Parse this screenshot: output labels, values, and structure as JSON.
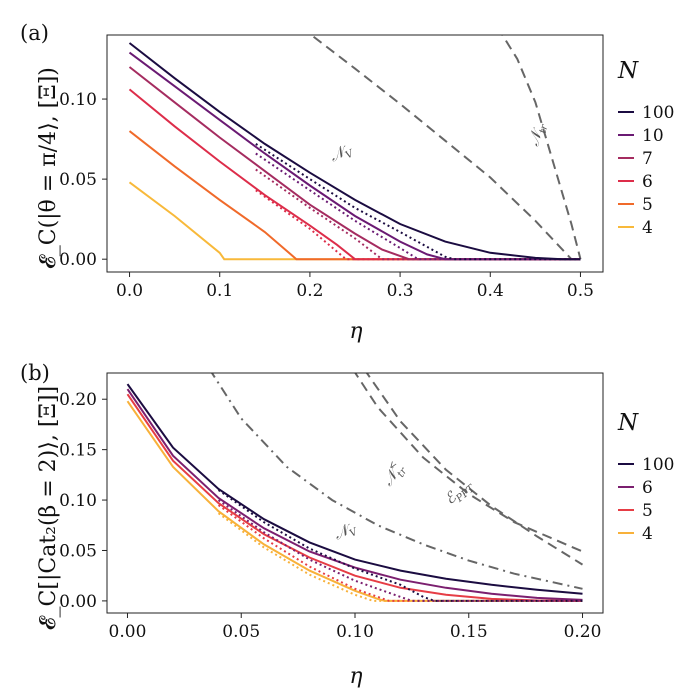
{
  "chart_data": [
    {
      "panel_label": "(a)",
      "type": "line",
      "xlabel": "η",
      "ylabel": "𝓔_C(|θ = π/4⟩, [Ξ])",
      "xlim": [
        -0.025,
        0.525
      ],
      "ylim": [
        -0.008,
        0.14
      ],
      "xticks": [
        "0.0",
        "0.1",
        "0.2",
        "0.3",
        "0.4",
        "0.5"
      ],
      "yticks": [
        "0.00",
        "0.05",
        "0.10"
      ],
      "legend": {
        "title": "N",
        "position": "right"
      },
      "series": [
        {
          "name": "100",
          "color": "#1b0c41",
          "solid": [
            [
              0,
              0.135
            ],
            [
              0.05,
              0.113
            ],
            [
              0.1,
              0.092
            ],
            [
              0.15,
              0.072
            ],
            [
              0.2,
              0.054
            ],
            [
              0.25,
              0.037
            ],
            [
              0.3,
              0.022
            ],
            [
              0.35,
              0.011
            ],
            [
              0.4,
              0.004
            ],
            [
              0.45,
              0.0008
            ],
            [
              0.48,
              0.0
            ],
            [
              0.5,
              0.0
            ]
          ],
          "dotted": [
            [
              0.14,
              0.072
            ],
            [
              0.2,
              0.05
            ],
            [
              0.25,
              0.032
            ],
            [
              0.3,
              0.017
            ],
            [
              0.35,
              0.0015
            ],
            [
              0.36,
              0.0
            ],
            [
              0.5,
              0.0
            ]
          ]
        },
        {
          "name": "10",
          "color": "#6a1a73",
          "solid": [
            [
              0,
              0.129
            ],
            [
              0.05,
              0.108
            ],
            [
              0.1,
              0.087
            ],
            [
              0.15,
              0.066
            ],
            [
              0.2,
              0.046
            ],
            [
              0.25,
              0.027
            ],
            [
              0.3,
              0.011
            ],
            [
              0.33,
              0.003
            ],
            [
              0.35,
              0.0
            ],
            [
              0.5,
              0.0
            ]
          ],
          "dotted": [
            [
              0.14,
              0.066
            ],
            [
              0.2,
              0.043
            ],
            [
              0.25,
              0.024
            ],
            [
              0.3,
              0.007
            ],
            [
              0.32,
              0.0
            ],
            [
              0.5,
              0.0
            ]
          ]
        },
        {
          "name": "7",
          "color": "#a52c60",
          "solid": [
            [
              0,
              0.12
            ],
            [
              0.05,
              0.098
            ],
            [
              0.1,
              0.076
            ],
            [
              0.15,
              0.055
            ],
            [
              0.2,
              0.034
            ],
            [
              0.25,
              0.016
            ],
            [
              0.28,
              0.006
            ],
            [
              0.31,
              0.0
            ],
            [
              0.5,
              0.0
            ]
          ],
          "dotted": [
            [
              0.14,
              0.056
            ],
            [
              0.2,
              0.032
            ],
            [
              0.25,
              0.013
            ],
            [
              0.28,
              0.0
            ],
            [
              0.5,
              0.0
            ]
          ]
        },
        {
          "name": "6",
          "color": "#dd2d4a",
          "solid": [
            [
              0,
              0.106
            ],
            [
              0.05,
              0.083
            ],
            [
              0.1,
              0.061
            ],
            [
              0.15,
              0.04
            ],
            [
              0.2,
              0.021
            ],
            [
              0.23,
              0.009
            ],
            [
              0.25,
              0.0
            ],
            [
              0.5,
              0.0
            ]
          ],
          "dotted": [
            [
              0.14,
              0.043
            ],
            [
              0.2,
              0.019
            ],
            [
              0.24,
              0.0
            ],
            [
              0.5,
              0.0
            ]
          ]
        },
        {
          "name": "5",
          "color": "#f06a2a",
          "solid": [
            [
              0,
              0.08
            ],
            [
              0.05,
              0.058
            ],
            [
              0.1,
              0.037
            ],
            [
              0.15,
              0.017
            ],
            [
              0.185,
              0.0
            ],
            [
              0.5,
              0.0
            ]
          ],
          "dotted": []
        },
        {
          "name": "4",
          "color": "#f8b93a",
          "solid": [
            [
              0,
              0.048
            ],
            [
              0.05,
              0.027
            ],
            [
              0.1,
              0.004
            ],
            [
              0.105,
              0.0
            ],
            [
              0.5,
              0.0
            ]
          ],
          "dotted": []
        }
      ],
      "bounds": [
        {
          "label": "𝒩_V",
          "style": "dashed",
          "points": [
            [
              0.19,
              0.145
            ],
            [
              0.25,
              0.119
            ],
            [
              0.3,
              0.097
            ],
            [
              0.35,
              0.074
            ],
            [
              0.4,
              0.051
            ],
            [
              0.45,
              0.024
            ],
            [
              0.49,
              0.0
            ]
          ]
        },
        {
          "label": "𝒩_tr",
          "style": "dashed",
          "points": [
            [
              0.408,
              0.145
            ],
            [
              0.43,
              0.125
            ],
            [
              0.45,
              0.098
            ],
            [
              0.47,
              0.06
            ],
            [
              0.49,
              0.022
            ],
            [
              0.5,
              0.0
            ]
          ]
        }
      ]
    },
    {
      "panel_label": "(b)",
      "type": "line",
      "xlabel": "η",
      "ylabel": "𝓔_C[|Cat₂(β = 2)⟩, [Ξ]]",
      "xlim": [
        -0.009,
        0.209
      ],
      "ylim": [
        -0.012,
        0.226
      ],
      "xticks": [
        "0.00",
        "0.05",
        "0.10",
        "0.15",
        "0.20"
      ],
      "yticks": [
        "0.00",
        "0.05",
        "0.10",
        "0.15",
        "0.20"
      ],
      "legend": {
        "title": "N",
        "position": "right"
      },
      "series": [
        {
          "name": "100",
          "color": "#1b0c41",
          "solid": [
            [
              0,
              0.215
            ],
            [
              0.02,
              0.152
            ],
            [
              0.04,
              0.111
            ],
            [
              0.06,
              0.081
            ],
            [
              0.08,
              0.058
            ],
            [
              0.1,
              0.041
            ],
            [
              0.12,
              0.03
            ],
            [
              0.14,
              0.022
            ],
            [
              0.16,
              0.016
            ],
            [
              0.18,
              0.011
            ],
            [
              0.2,
              0.007
            ]
          ],
          "dotted": [
            [
              0.04,
              0.11
            ],
            [
              0.06,
              0.078
            ],
            [
              0.08,
              0.052
            ],
            [
              0.1,
              0.032
            ],
            [
              0.12,
              0.016
            ],
            [
              0.13,
              0.004
            ],
            [
              0.135,
              0.0
            ],
            [
              0.2,
              0.0
            ]
          ]
        },
        {
          "name": "6",
          "color": "#7b1f6f",
          "solid": [
            [
              0,
              0.21
            ],
            [
              0.02,
              0.144
            ],
            [
              0.04,
              0.102
            ],
            [
              0.06,
              0.072
            ],
            [
              0.08,
              0.049
            ],
            [
              0.1,
              0.033
            ],
            [
              0.12,
              0.021
            ],
            [
              0.14,
              0.013
            ],
            [
              0.16,
              0.007
            ],
            [
              0.18,
              0.003
            ],
            [
              0.2,
              0.001
            ]
          ],
          "dotted": [
            [
              0.04,
              0.1
            ],
            [
              0.06,
              0.068
            ],
            [
              0.08,
              0.041
            ],
            [
              0.1,
              0.02
            ],
            [
              0.12,
              0.004
            ],
            [
              0.125,
              0.0
            ],
            [
              0.2,
              0.0
            ]
          ]
        },
        {
          "name": "5",
          "color": "#e63d45",
          "solid": [
            [
              0,
              0.205
            ],
            [
              0.02,
              0.139
            ],
            [
              0.04,
              0.097
            ],
            [
              0.06,
              0.066
            ],
            [
              0.08,
              0.043
            ],
            [
              0.1,
              0.025
            ],
            [
              0.12,
              0.013
            ],
            [
              0.14,
              0.006
            ],
            [
              0.16,
              0.002
            ],
            [
              0.18,
              0.0004
            ],
            [
              0.2,
              0.0
            ]
          ],
          "dotted": [
            [
              0.04,
              0.095
            ],
            [
              0.06,
              0.062
            ],
            [
              0.08,
              0.034
            ],
            [
              0.1,
              0.012
            ],
            [
              0.115,
              0.0
            ],
            [
              0.2,
              0.0
            ]
          ]
        },
        {
          "name": "4",
          "color": "#f8b13a",
          "solid": [
            [
              0,
              0.198
            ],
            [
              0.02,
              0.133
            ],
            [
              0.04,
              0.089
            ],
            [
              0.06,
              0.056
            ],
            [
              0.08,
              0.03
            ],
            [
              0.1,
              0.01
            ],
            [
              0.11,
              0.002
            ],
            [
              0.113,
              0.0
            ],
            [
              0.2,
              0.0
            ]
          ],
          "dotted": [
            [
              0.04,
              0.087
            ],
            [
              0.06,
              0.053
            ],
            [
              0.08,
              0.026
            ],
            [
              0.1,
              0.006
            ],
            [
              0.108,
              0.0
            ],
            [
              0.2,
              0.0
            ]
          ]
        }
      ],
      "bounds": [
        {
          "label": "𝒩_V",
          "style": "dash-dot",
          "points": [
            [
              0.036,
              0.23
            ],
            [
              0.05,
              0.181
            ],
            [
              0.07,
              0.133
            ],
            [
              0.09,
              0.1
            ],
            [
              0.11,
              0.075
            ],
            [
              0.13,
              0.056
            ],
            [
              0.15,
              0.04
            ],
            [
              0.17,
              0.027
            ],
            [
              0.2,
              0.012
            ]
          ]
        },
        {
          "label": "𝒩_tr^<",
          "style": "dashed",
          "points": [
            [
              0.099,
              0.23
            ],
            [
              0.11,
              0.192
            ],
            [
              0.13,
              0.142
            ],
            [
              0.15,
              0.106
            ],
            [
              0.17,
              0.078
            ],
            [
              0.2,
              0.049
            ]
          ]
        },
        {
          "label": "ℰ_PPT",
          "style": "dashed",
          "points": [
            [
              0.104,
              0.23
            ],
            [
              0.12,
              0.178
            ],
            [
              0.14,
              0.13
            ],
            [
              0.16,
              0.094
            ],
            [
              0.18,
              0.064
            ],
            [
              0.2,
              0.036
            ]
          ]
        }
      ]
    }
  ],
  "annotations": {
    "a_NV": {
      "base": "𝒩",
      "sub": "V"
    },
    "a_Ntr": {
      "base": "𝒩",
      "sub": "tr"
    },
    "b_NV": {
      "base": "𝒩",
      "sub": "V"
    },
    "b_Ntr": {
      "base": "𝒩",
      "sub": "tr",
      "sup": "<"
    },
    "b_EPPT": {
      "base": "ℰ",
      "sub": "PPT"
    }
  }
}
